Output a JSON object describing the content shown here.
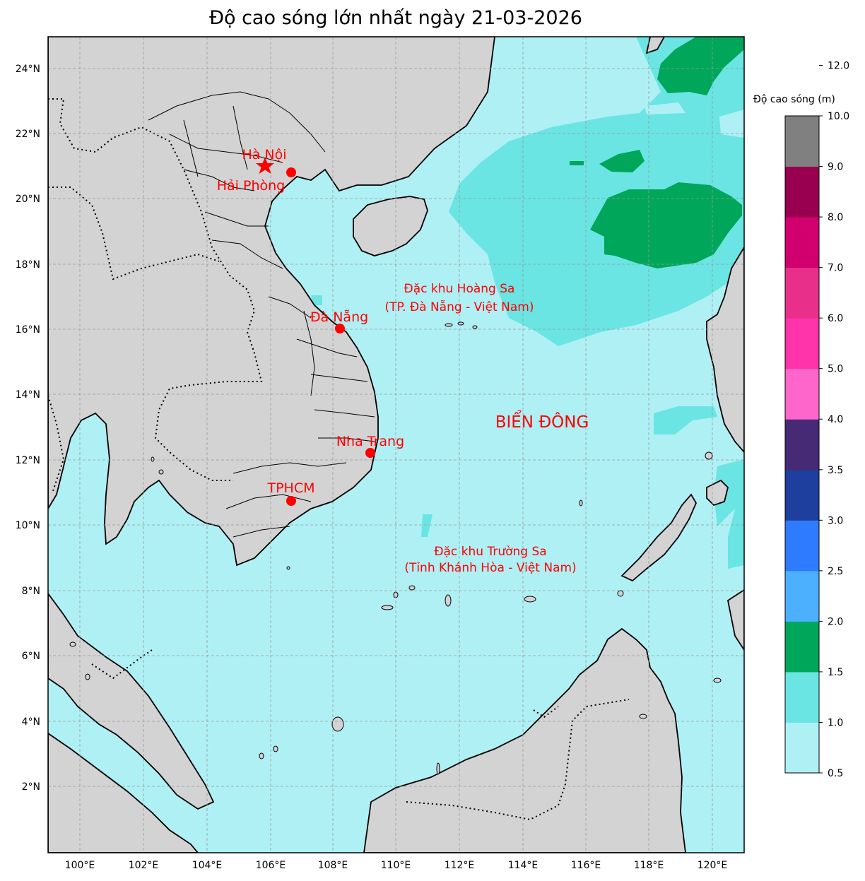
{
  "title": "Độ cao sóng lớn nhất ngày 21-03-2026",
  "colorbar": {
    "title": "Độ cao sóng (m)",
    "levels": [
      "0.5",
      "1.0",
      "1.5",
      "2.0",
      "2.5",
      "3.0",
      "3.5",
      "4.0",
      "5.0",
      "6.0",
      "7.0",
      "8.0",
      "9.0",
      "10.0",
      "12.0"
    ],
    "colors": [
      "#aff0f5",
      "#6ae5e3",
      "#00a65a",
      "#4cb0ff",
      "#2f7bff",
      "#1e3f9e",
      "#472a75",
      "#ff66cc",
      "#ff33aa",
      "#e8308b",
      "#d1006e",
      "#990050",
      "#808080"
    ]
  },
  "map": {
    "land_color": "#d3d3d3",
    "sea_color": "#aff0f5",
    "lon_ticks": [
      "100°E",
      "102°E",
      "104°E",
      "106°E",
      "108°E",
      "110°E",
      "112°E",
      "114°E",
      "116°E",
      "118°E",
      "120°E"
    ],
    "lat_ticks": [
      "24°N",
      "22°N",
      "20°N",
      "18°N",
      "16°N",
      "14°N",
      "12°N",
      "10°N",
      "8°N",
      "6°N",
      "4°N",
      "2°N"
    ]
  },
  "labels": {
    "hanoi": "Hà Nội",
    "haiphong": "Hải Phòng",
    "danang": "Đà Nẵng",
    "nhatrang": "Nha Trang",
    "tphcm": "TPHCM",
    "hoangsa_1": "Đặc khu Hoàng Sa",
    "hoangsa_2": "(TP. Đà Nẵng - Việt Nam)",
    "truongsa_1": "Đặc khu Trường Sa",
    "truongsa_2": "(Tỉnh Khánh Hòa - Việt Nam)",
    "sea": "BIỂN ĐÔNG"
  },
  "marker_color": "#ff0000"
}
